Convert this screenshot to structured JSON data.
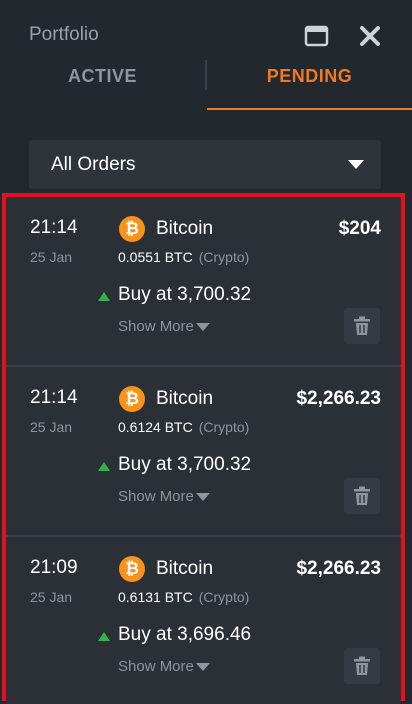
{
  "header": {
    "title": "Portfolio",
    "maximize_icon": "maximize-icon",
    "close_icon": "close-icon"
  },
  "tabs": [
    {
      "label": "ACTIVE",
      "selected": false
    },
    {
      "label": "PENDING",
      "selected": true
    }
  ],
  "filter": {
    "selected": "All Orders"
  },
  "colors": {
    "accent": "#f07a22",
    "highlight_border": "#e5101a",
    "bitcoin": "#f7931a",
    "up": "#2fb34a"
  },
  "orders": [
    {
      "time": "21:14",
      "date": "25 Jan",
      "coin_symbol": "₿",
      "coin": "Bitcoin",
      "amount": "$204",
      "qty": "0.0551 BTC",
      "category": "(Crypto)",
      "action": "Buy at 3,700.32",
      "show_more": "Show More"
    },
    {
      "time": "21:14",
      "date": "25 Jan",
      "coin_symbol": "₿",
      "coin": "Bitcoin",
      "amount": "$2,266.23",
      "qty": "0.6124 BTC",
      "category": "(Crypto)",
      "action": "Buy at 3,700.32",
      "show_more": "Show More"
    },
    {
      "time": "21:09",
      "date": "25 Jan",
      "coin_symbol": "₿",
      "coin": "Bitcoin",
      "amount": "$2,266.23",
      "qty": "0.6131 BTC",
      "category": "(Crypto)",
      "action": "Buy at 3,696.46",
      "show_more": "Show More"
    }
  ]
}
